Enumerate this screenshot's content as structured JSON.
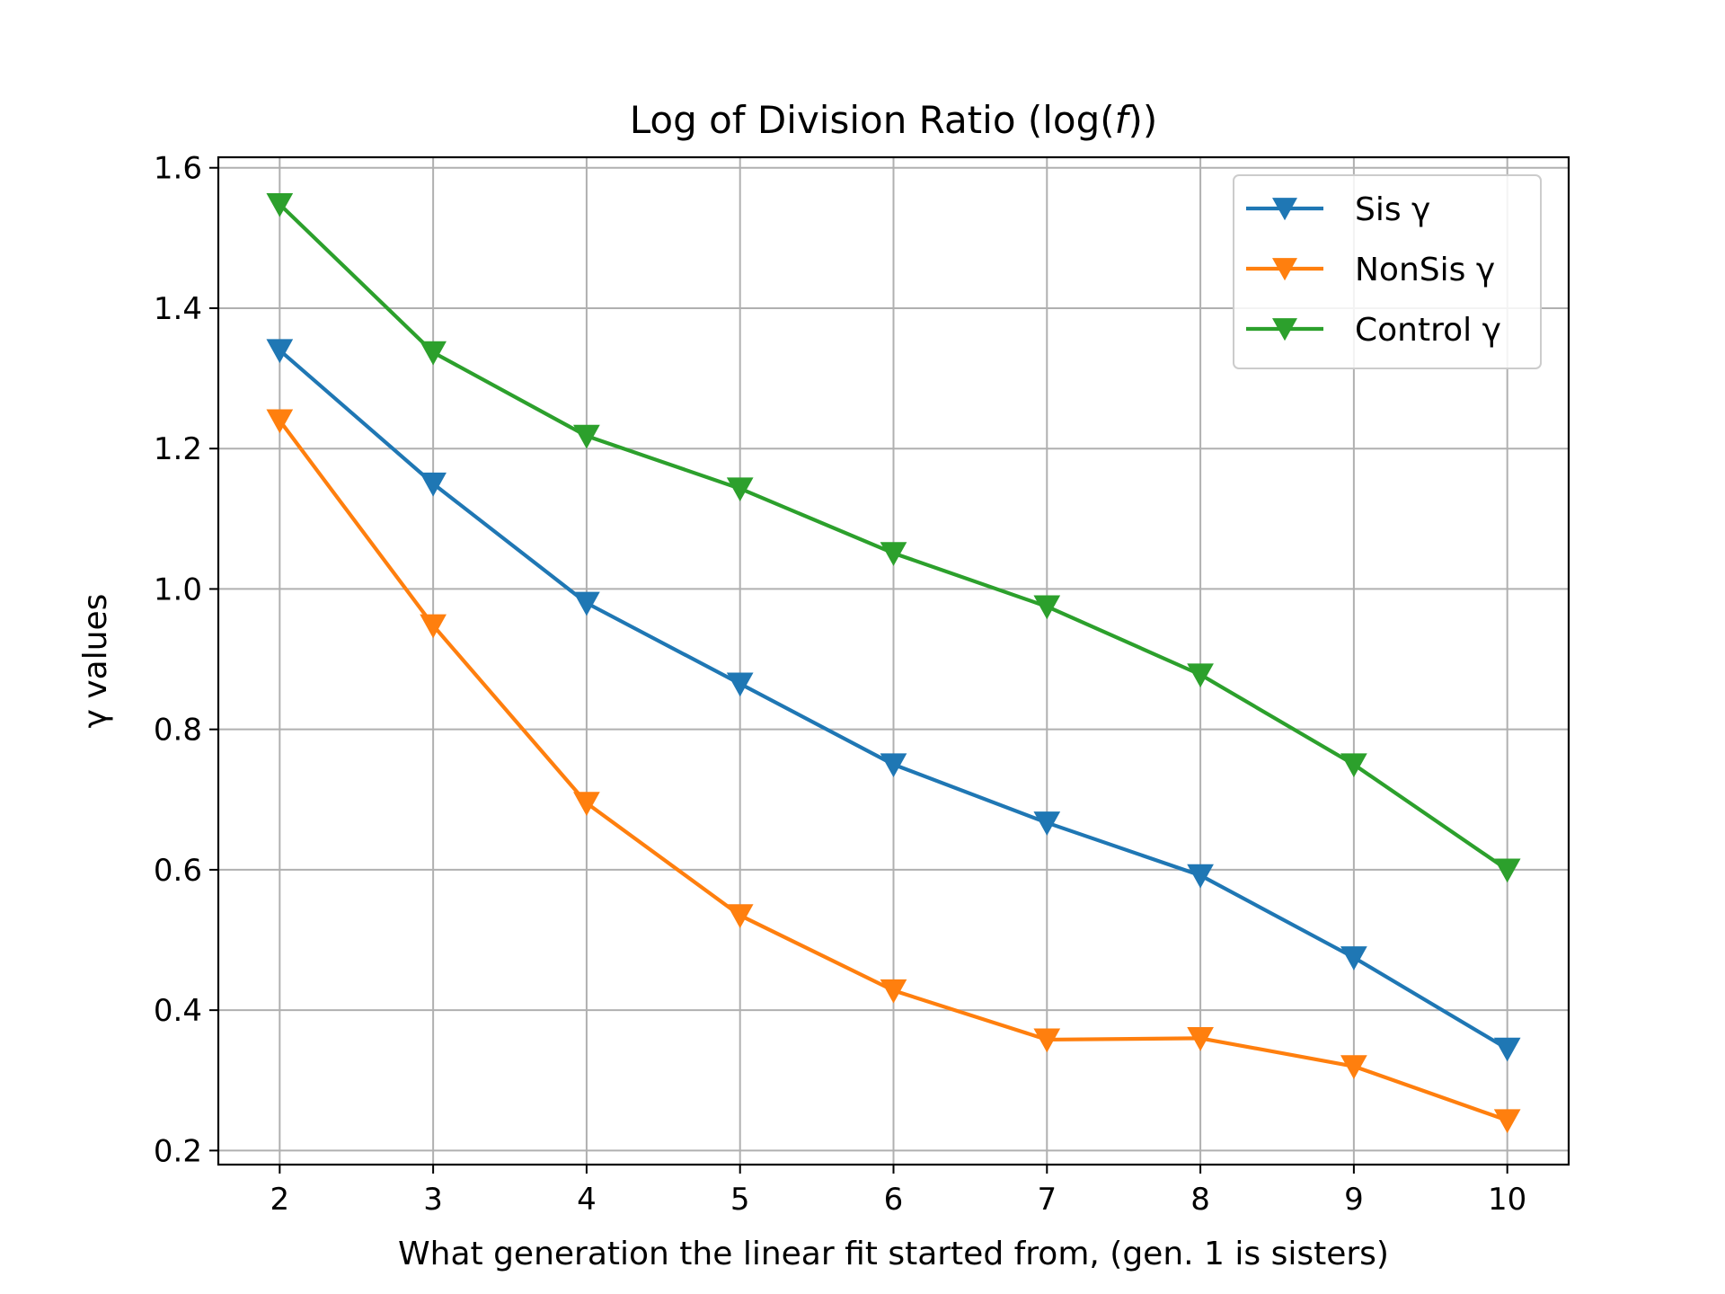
{
  "chart_data": {
    "type": "line",
    "title": "Log of Division Ratio (log(f))",
    "title_parts": {
      "prefix": "Log of Division Ratio (log(",
      "italic": "f",
      "suffix": "))"
    },
    "xlabel": "What generation the linear fit started from, (gen. 1 is sisters)",
    "ylabel": "γ values",
    "x": [
      2,
      3,
      4,
      5,
      6,
      7,
      8,
      9,
      10
    ],
    "xlim": [
      1.6,
      10.4
    ],
    "ylim": [
      0.18,
      1.615
    ],
    "xticks": [
      2,
      3,
      4,
      5,
      6,
      7,
      8,
      9,
      10
    ],
    "yticks": [
      0.2,
      0.4,
      0.6,
      0.8,
      1.0,
      1.2,
      1.4,
      1.6
    ],
    "ytick_labels": [
      "0.2",
      "0.4",
      "0.6",
      "0.8",
      "1.0",
      "1.2",
      "1.4",
      "1.6"
    ],
    "grid": true,
    "legend_position": "top-right",
    "marker": "triangle-down",
    "series": [
      {
        "name": "Sis γ",
        "color": "#1f77b4",
        "values": [
          1.34,
          1.15,
          0.98,
          0.865,
          0.75,
          0.667,
          0.592,
          0.475,
          0.345
        ]
      },
      {
        "name": "NonSis γ",
        "color": "#ff7f0e",
        "values": [
          1.24,
          0.948,
          0.695,
          0.535,
          0.428,
          0.358,
          0.36,
          0.32,
          0.243
        ]
      },
      {
        "name": "Control γ",
        "color": "#2ca02c",
        "values": [
          1.548,
          1.337,
          1.218,
          1.143,
          1.051,
          0.975,
          0.878,
          0.75,
          0.6
        ]
      }
    ]
  }
}
